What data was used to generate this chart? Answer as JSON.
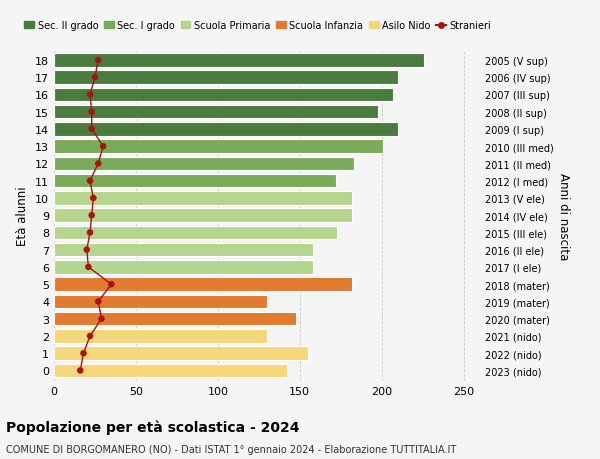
{
  "ages": [
    18,
    17,
    16,
    15,
    14,
    13,
    12,
    11,
    10,
    9,
    8,
    7,
    6,
    5,
    4,
    3,
    2,
    1,
    0
  ],
  "right_labels": [
    "2005 (V sup)",
    "2006 (IV sup)",
    "2007 (III sup)",
    "2008 (II sup)",
    "2009 (I sup)",
    "2010 (III med)",
    "2011 (II med)",
    "2012 (I med)",
    "2013 (V ele)",
    "2014 (IV ele)",
    "2015 (III ele)",
    "2016 (II ele)",
    "2017 (I ele)",
    "2018 (mater)",
    "2019 (mater)",
    "2020 (mater)",
    "2021 (nido)",
    "2022 (nido)",
    "2023 (nido)"
  ],
  "bar_values": [
    226,
    210,
    207,
    198,
    210,
    201,
    183,
    172,
    182,
    182,
    173,
    158,
    158,
    182,
    130,
    148,
    130,
    155,
    142
  ],
  "bar_colors": [
    "#4a7c3f",
    "#4a7c3f",
    "#4a7c3f",
    "#4a7c3f",
    "#4a7c3f",
    "#7bab5a",
    "#7bab5a",
    "#7bab5a",
    "#b5d48e",
    "#b5d48e",
    "#b5d48e",
    "#b5d48e",
    "#b5d48e",
    "#e07b30",
    "#e07b30",
    "#e07b30",
    "#f5d678",
    "#f5d678",
    "#f5d678"
  ],
  "stranieri_x": [
    27,
    25,
    22,
    23,
    23,
    30,
    27,
    22,
    24,
    23,
    22,
    20,
    21,
    35,
    27,
    29,
    22,
    18,
    16
  ],
  "title": "Popolazione per età scolastica - 2024",
  "subtitle": "COMUNE DI BORGOMANERO (NO) - Dati ISTAT 1° gennaio 2024 - Elaborazione TUTTITALIA.IT",
  "ylabel": "Età alunni",
  "right_ylabel": "Anni di nascita",
  "xlim": [
    0,
    260
  ],
  "xticks": [
    0,
    50,
    100,
    150,
    200,
    250
  ],
  "legend_labels": [
    "Sec. II grado",
    "Sec. I grado",
    "Scuola Primaria",
    "Scuola Infanzia",
    "Asilo Nido",
    "Stranieri"
  ],
  "legend_colors": [
    "#4a7c3f",
    "#7bab5a",
    "#b5d48e",
    "#e07b30",
    "#f5d678",
    "#aa1111"
  ],
  "bg_color": "#f5f5f5",
  "bar_height": 0.78,
  "grid_color": "#cccccc",
  "stranieri_line_color": "#aa1111",
  "stranieri_dot_color": "#aa1111"
}
